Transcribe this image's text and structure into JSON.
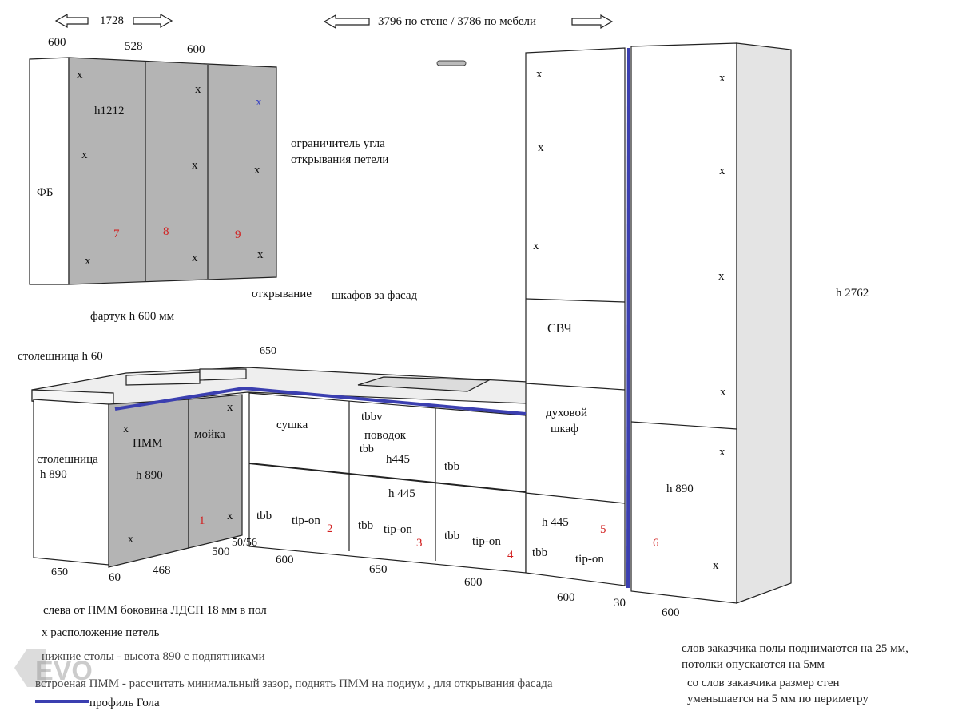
{
  "top_dims": {
    "left_total": "1728",
    "main_total": "3796 по стене / 3786 по мебели",
    "upper_widths": [
      "600",
      "528",
      "600"
    ]
  },
  "upper_cabinets": {
    "side_label": "ФБ",
    "height_label": "h1212",
    "numbers": [
      "7",
      "8",
      "9"
    ],
    "hinge_mark": "x",
    "limiter_note": "ограничитель угла открывания петели"
  },
  "notes": {
    "opening": "открывание",
    "opening_rest": "шкафов за фасад",
    "apron": "фартук h 600 мм",
    "countertop": "столешница h 60",
    "top_650": "650"
  },
  "lower_left": {
    "side_label_1": "столешница",
    "side_label_2": "h 890",
    "pmm": "ПММ",
    "pmm_h": "h 890",
    "sink": "мойка",
    "module_no": "1"
  },
  "lower_modules": {
    "drying": "сушка",
    "tbbv": "tbbv",
    "lead": "поводок",
    "tbb": "tbb",
    "tipon": "tip-on",
    "h445": "h445",
    "h445s": "h 445",
    "numbers": [
      "2",
      "3",
      "4",
      "5",
      "6"
    ]
  },
  "tall": {
    "microwave": "СВЧ",
    "oven_1": "духовой",
    "oven_2": "шкаф",
    "height": "h 2762",
    "h890": "h 890"
  },
  "bottom_dims": [
    "650",
    "60",
    "468",
    "500",
    "50/56",
    "600",
    "650",
    "600",
    "600",
    "30",
    "600"
  ],
  "legend": {
    "line1": "слева от ПММ боковина ЛДСП  18 мм в пол",
    "line2": "x расположение петель",
    "line3": "нижние столы - высота 890 с подпятниками",
    "line4": "встроеная ПММ - рассчитать минимальный зазор, поднять ПММ на подиум , для открывания фасада",
    "line5": "профиль Гола",
    "logo": "EVO"
  },
  "client_notes": {
    "a1": "слов заказчика полы поднимаются на 25 мм,",
    "a2": "потолки опускаются на  5мм",
    "b1": "со слов заказчика размер стен",
    "b2": "уменьшается на 5 мм по периметру"
  },
  "colors": {
    "panel_gray": "#b4b4b4",
    "face_white": "#ffffff",
    "side_light": "#e4e4e4",
    "gola_blue": "#3b3fb0",
    "number_red": "#d21f1f",
    "line": "#222222"
  }
}
